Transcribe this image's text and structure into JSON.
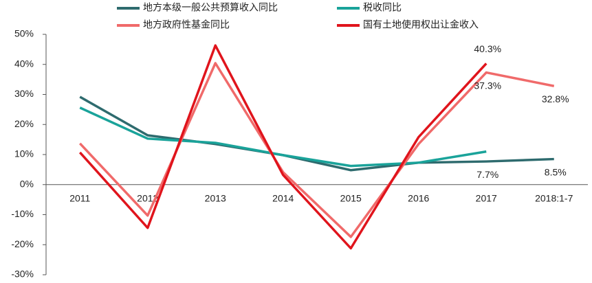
{
  "chart_data": {
    "type": "line",
    "categories": [
      "2011",
      "2012",
      "2013",
      "2014",
      "2015",
      "2016",
      "2017",
      "2018:1-7"
    ],
    "series": [
      {
        "name": "地方本级一般公共预算收入同比",
        "color": "#2e6b6e",
        "values": [
          29.2,
          16.4,
          13.5,
          9.8,
          4.8,
          7.3,
          7.7,
          8.5
        ],
        "value_labels": [
          null,
          null,
          null,
          null,
          null,
          null,
          "7.7%",
          "8.5%"
        ]
      },
      {
        "name": "税收同比",
        "color": "#1aa39a",
        "values": [
          25.6,
          15.3,
          13.9,
          9.8,
          6.2,
          7.3,
          11.0,
          null
        ]
      },
      {
        "name": "地方政府性基金同比",
        "color": "#f06a6a",
        "values": [
          13.7,
          -10.3,
          40.4,
          4.1,
          -17.4,
          13.5,
          37.3,
          32.8
        ],
        "value_labels": [
          null,
          null,
          null,
          null,
          null,
          null,
          "37.3%",
          "32.8%"
        ]
      },
      {
        "name": "国有土地使用权出让金收入",
        "color": "#e0141c",
        "values": [
          10.7,
          -14.4,
          46.3,
          3.2,
          -21.2,
          15.8,
          40.3,
          null
        ],
        "value_labels": [
          null,
          null,
          null,
          null,
          null,
          null,
          "40.3%",
          null
        ]
      }
    ],
    "ylim": [
      -30,
      50
    ],
    "yticks": [
      {
        "value": -30,
        "label": "-30%"
      },
      {
        "value": -20,
        "label": "-20%"
      },
      {
        "value": -10,
        "label": "-10%"
      },
      {
        "value": 0,
        "label": "0%"
      },
      {
        "value": 10,
        "label": "10%"
      },
      {
        "value": 20,
        "label": "20%"
      },
      {
        "value": 30,
        "label": "30%"
      },
      {
        "value": 40,
        "label": "40%"
      },
      {
        "value": 50,
        "label": "50%"
      }
    ]
  }
}
